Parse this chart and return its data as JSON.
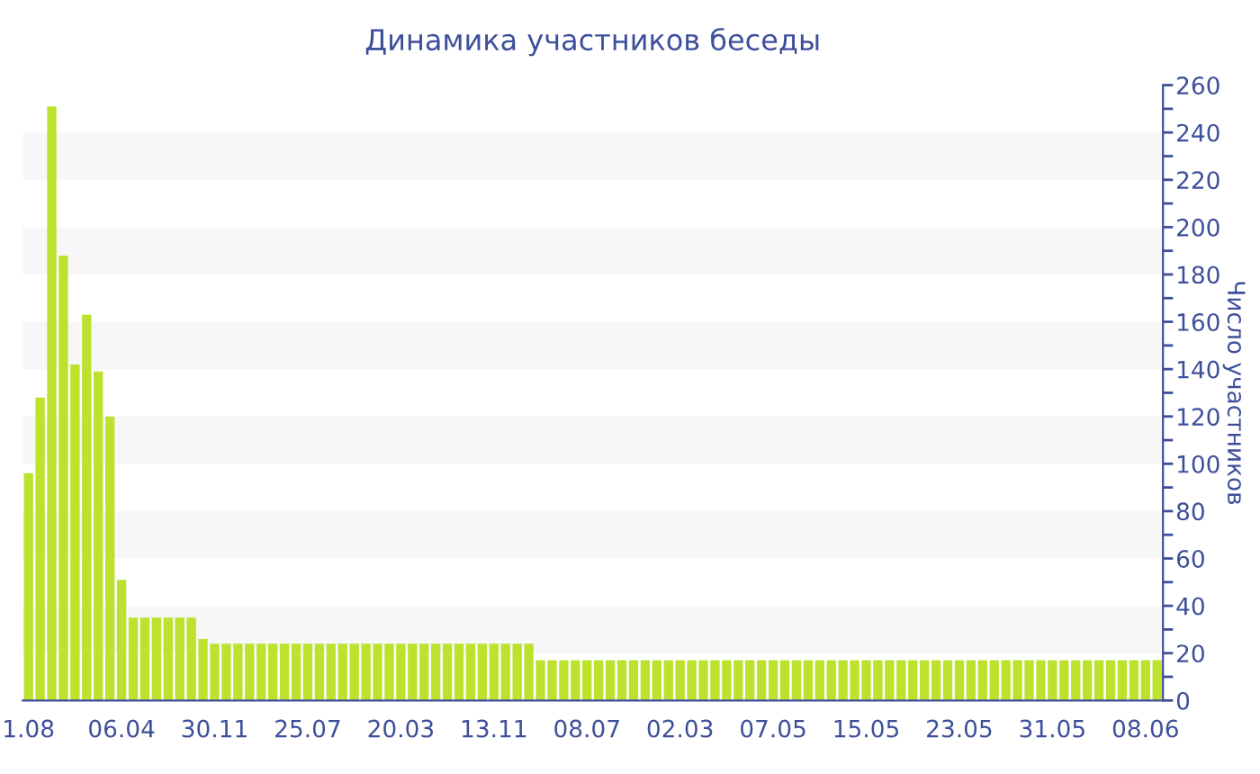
{
  "chart_data": {
    "type": "bar",
    "title": "Динамика участников беседы",
    "ylabel": "Число участников",
    "categories": [
      "1.08",
      null,
      null,
      null,
      null,
      null,
      null,
      null,
      "06.04",
      null,
      null,
      null,
      null,
      null,
      null,
      null,
      "30.11",
      null,
      null,
      null,
      null,
      null,
      null,
      null,
      "25.07",
      null,
      null,
      null,
      null,
      null,
      null,
      null,
      "20.03",
      null,
      null,
      null,
      null,
      null,
      null,
      null,
      "13.11",
      null,
      null,
      null,
      null,
      null,
      null,
      null,
      "08.07",
      null,
      null,
      null,
      null,
      null,
      null,
      null,
      "02.03",
      null,
      null,
      null,
      null,
      null,
      null,
      null,
      "07.05",
      null,
      null,
      null,
      null,
      null,
      null,
      null,
      "15.05",
      null,
      null,
      null,
      null,
      null,
      null,
      null,
      "23.05",
      null,
      null,
      null,
      null,
      null,
      null,
      null,
      "31.05",
      null,
      null,
      null,
      null,
      null,
      null,
      null,
      "08.06",
      null
    ],
    "values": [
      96,
      128,
      251,
      188,
      142,
      163,
      139,
      120,
      51,
      35,
      35,
      35,
      35,
      35,
      35,
      26,
      24,
      24,
      24,
      24,
      24,
      24,
      24,
      24,
      24,
      24,
      24,
      24,
      24,
      24,
      24,
      24,
      24,
      24,
      24,
      24,
      24,
      24,
      24,
      24,
      24,
      24,
      24,
      24,
      17,
      17,
      17,
      17,
      17,
      17,
      17,
      17,
      17,
      17,
      17,
      17,
      17,
      17,
      17,
      17,
      17,
      17,
      17,
      17,
      17,
      17,
      17,
      17,
      17,
      17,
      17,
      17,
      17,
      17,
      17,
      17,
      17,
      17,
      17,
      17,
      17,
      17,
      17,
      17,
      17,
      17,
      17,
      17,
      17,
      17,
      17,
      17,
      17,
      17,
      17,
      17,
      17,
      17
    ],
    "color": "#bde22e",
    "ylim": [
      0,
      260
    ],
    "yticks": [
      0,
      {
        "value": 10,
        "label": null
      },
      20,
      {
        "value": 30,
        "label": null
      },
      40,
      {
        "value": 50,
        "label": null
      },
      60,
      {
        "value": 70,
        "label": null
      },
      80,
      {
        "value": 90,
        "label": null
      },
      100,
      {
        "value": 110,
        "label": null
      },
      120,
      {
        "value": 130,
        "label": null
      },
      140,
      {
        "value": 150,
        "label": null
      },
      160,
      {
        "value": 170,
        "label": null
      },
      180,
      {
        "value": 190,
        "label": null
      },
      200,
      {
        "value": 210,
        "label": null
      },
      220,
      {
        "value": 230,
        "label": null
      },
      240,
      {
        "value": 250,
        "label": null
      },
      260
    ],
    "bands": [
      {
        "axis": "y",
        "from": 20,
        "to": 40,
        "color": "#f7f7f7"
      },
      {
        "axis": "y",
        "from": 60,
        "to": 80,
        "color": "#f7f7f7"
      },
      {
        "axis": "y",
        "from": 100,
        "to": 120,
        "color": "#f7f7f7"
      },
      {
        "axis": "y",
        "from": 140,
        "to": 160,
        "color": "#f7f7f7"
      },
      {
        "axis": "y",
        "from": 180,
        "to": 200,
        "color": "#f7f7f7"
      },
      {
        "axis": "y",
        "from": 220,
        "to": 240,
        "color": "#f7f7f7"
      }
    ],
    "grid": false,
    "legend": false
  }
}
